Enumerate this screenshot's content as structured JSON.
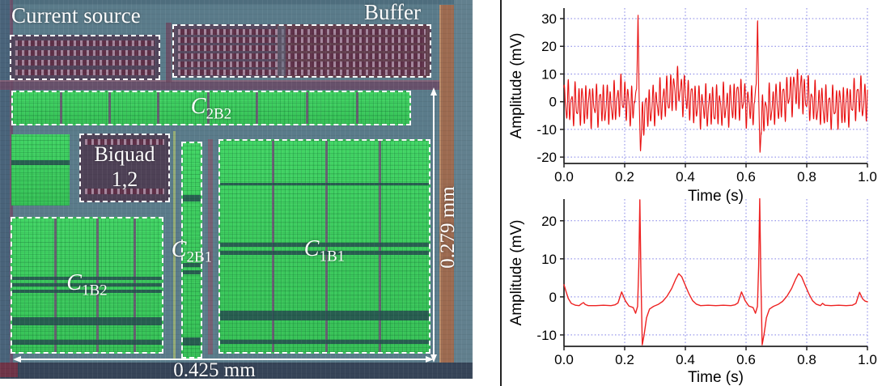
{
  "micrograph": {
    "labels": {
      "current_source": "Current source",
      "buffer": "Buffer",
      "biquad_line1": "Biquad",
      "biquad_line2": "1,2",
      "c2b2": {
        "main": "C",
        "sub": "2B2"
      },
      "c2b1": {
        "main": "C",
        "sub": "2B1"
      },
      "c1b1": {
        "main": "C",
        "sub": "1B1"
      },
      "c1b2": {
        "main": "C",
        "sub": "1B2"
      },
      "width_dim": "0.425 mm",
      "height_dim": "0.279 mm"
    },
    "colors": {
      "background": "#5a7b8a",
      "capacitor_green": "#3ecb5d",
      "resistor_maroon": "#5e3048",
      "annotation": "#ffffff"
    }
  },
  "chart_data": [
    {
      "type": "line",
      "title": "",
      "xlabel": "Time (s)",
      "ylabel": "Amplitude (mV)",
      "xlim": [
        0,
        1
      ],
      "ylim": [
        -22.3,
        33.8
      ],
      "xticks": [
        0.0,
        0.2,
        0.4,
        0.6,
        0.8,
        1.0
      ],
      "xtick_labels": [
        "0.0",
        "0.2",
        "0.4",
        "0.6",
        "0.8",
        "1.0"
      ],
      "yticks": [
        -20,
        -10,
        0,
        10,
        20,
        30
      ],
      "grid": true,
      "grid_color": "#8484e6",
      "line_color": "#e81010",
      "line_width": 1.1,
      "signal": "noisy_ecg",
      "samples": 1700,
      "base_points": [
        [
          0,
          0.5
        ],
        [
          0.02,
          -1
        ],
        [
          0.1,
          -1
        ],
        [
          0.165,
          -1.2
        ],
        [
          0.182,
          1.6
        ],
        [
          0.196,
          2
        ],
        [
          0.21,
          -1
        ],
        [
          0.225,
          -1.8
        ],
        [
          0.234,
          -0.5
        ],
        [
          0.2395,
          6
        ],
        [
          0.244,
          31.5
        ],
        [
          0.2475,
          2
        ],
        [
          0.252,
          -18
        ],
        [
          0.2565,
          -8
        ],
        [
          0.263,
          -4
        ],
        [
          0.275,
          -2.5
        ],
        [
          0.3,
          -1
        ],
        [
          0.33,
          0.8
        ],
        [
          0.355,
          3
        ],
        [
          0.375,
          4.8
        ],
        [
          0.395,
          2.8
        ],
        [
          0.42,
          0.2
        ],
        [
          0.445,
          -1.5
        ],
        [
          0.48,
          -1.8
        ],
        [
          0.52,
          -1.6
        ],
        [
          0.55,
          -1.2
        ],
        [
          0.57,
          0.8
        ],
        [
          0.583,
          1.6
        ],
        [
          0.6,
          -0.8
        ],
        [
          0.619,
          -1.8
        ],
        [
          0.628,
          -0.5
        ],
        [
          0.6335,
          6
        ],
        [
          0.638,
          31.5
        ],
        [
          0.6415,
          2
        ],
        [
          0.646,
          -18
        ],
        [
          0.6505,
          -8
        ],
        [
          0.657,
          -4
        ],
        [
          0.669,
          -2.5
        ],
        [
          0.694,
          -1
        ],
        [
          0.724,
          0.8
        ],
        [
          0.749,
          3
        ],
        [
          0.769,
          4.8
        ],
        [
          0.789,
          2.8
        ],
        [
          0.814,
          0.2
        ],
        [
          0.839,
          -1.5
        ],
        [
          0.874,
          -1.8
        ],
        [
          0.914,
          -1.6
        ],
        [
          0.944,
          -1
        ],
        [
          0.962,
          1.2
        ],
        [
          0.975,
          2
        ],
        [
          0.988,
          0
        ],
        [
          1,
          -0.5
        ]
      ],
      "noise": {
        "amplitude": 9,
        "components": [
          {
            "f": 86,
            "a": 0.62,
            "p": 0.4
          },
          {
            "f": 139,
            "a": 0.25,
            "p": 1.7
          },
          {
            "f": 47,
            "a": 0.13,
            "p": 2.9
          }
        ],
        "suppress_at": [
          0.244,
          0.638
        ],
        "suppress_radius": 0.012,
        "suppress_factor": 0.2
      }
    },
    {
      "type": "line",
      "title": "",
      "xlabel": "Time (s)",
      "ylabel": "Amplitude (mV)",
      "xlim": [
        0,
        1
      ],
      "ylim": [
        -13,
        25.7
      ],
      "xticks": [
        0.0,
        0.2,
        0.4,
        0.6,
        0.8,
        1.0
      ],
      "xtick_labels": [
        "0.0",
        "0.2",
        "0.4",
        "0.6",
        "0.8",
        "1.0"
      ],
      "yticks": [
        -10,
        0,
        10,
        20
      ],
      "grid": true,
      "grid_color": "#8484e6",
      "line_color": "#ee2222",
      "line_width": 1.4,
      "signal": "clean_ecg",
      "points": [
        [
          0,
          3.2
        ],
        [
          0.006,
          1.6
        ],
        [
          0.014,
          -0.4
        ],
        [
          0.024,
          -1.7
        ],
        [
          0.038,
          -2.2
        ],
        [
          0.05,
          -2.3
        ],
        [
          0.058,
          -1.8
        ],
        [
          0.064,
          -1.5
        ],
        [
          0.07,
          -2
        ],
        [
          0.08,
          -2.3
        ],
        [
          0.105,
          -2.3
        ],
        [
          0.13,
          -2.2
        ],
        [
          0.155,
          -2.3
        ],
        [
          0.168,
          -2.1
        ],
        [
          0.178,
          -1.6
        ],
        [
          0.19,
          1.3
        ],
        [
          0.202,
          -1
        ],
        [
          0.214,
          -2.4
        ],
        [
          0.228,
          -2.8
        ],
        [
          0.236,
          -4.3
        ],
        [
          0.2425,
          -2.5
        ],
        [
          0.2465,
          8
        ],
        [
          0.25,
          25.5
        ],
        [
          0.2535,
          6
        ],
        [
          0.258,
          -12.6
        ],
        [
          0.264,
          -10
        ],
        [
          0.272,
          -5.5
        ],
        [
          0.282,
          -3.2
        ],
        [
          0.295,
          -2.5
        ],
        [
          0.31,
          -2
        ],
        [
          0.325,
          -1.2
        ],
        [
          0.34,
          0.2
        ],
        [
          0.355,
          2.2
        ],
        [
          0.368,
          4.6
        ],
        [
          0.378,
          6.1
        ],
        [
          0.388,
          5.3
        ],
        [
          0.4,
          3
        ],
        [
          0.412,
          0.8
        ],
        [
          0.424,
          -1
        ],
        [
          0.436,
          -1.9
        ],
        [
          0.45,
          -2.3
        ],
        [
          0.475,
          -2.2
        ],
        [
          0.5,
          -2.3
        ],
        [
          0.525,
          -2.2
        ],
        [
          0.55,
          -2.3
        ],
        [
          0.563,
          -2.1
        ],
        [
          0.573,
          -1.6
        ],
        [
          0.585,
          1.3
        ],
        [
          0.597,
          -1
        ],
        [
          0.609,
          -2.4
        ],
        [
          0.623,
          -2.8
        ],
        [
          0.631,
          -4.3
        ],
        [
          0.6375,
          -2.5
        ],
        [
          0.6415,
          8
        ],
        [
          0.645,
          25.8
        ],
        [
          0.6485,
          6
        ],
        [
          0.653,
          -12.6
        ],
        [
          0.659,
          -10
        ],
        [
          0.667,
          -5.5
        ],
        [
          0.677,
          -3.2
        ],
        [
          0.69,
          -2.5
        ],
        [
          0.705,
          -2
        ],
        [
          0.72,
          -1.2
        ],
        [
          0.735,
          0.2
        ],
        [
          0.75,
          2.2
        ],
        [
          0.763,
          4.6
        ],
        [
          0.773,
          6.1
        ],
        [
          0.783,
          5.3
        ],
        [
          0.795,
          3
        ],
        [
          0.807,
          0.8
        ],
        [
          0.819,
          -1
        ],
        [
          0.831,
          -1.9
        ],
        [
          0.845,
          -2.3
        ],
        [
          0.852,
          -1.7
        ],
        [
          0.86,
          -2.2
        ],
        [
          0.88,
          -2.3
        ],
        [
          0.905,
          -2.2
        ],
        [
          0.93,
          -2.3
        ],
        [
          0.95,
          -2.2
        ],
        [
          0.962,
          -1.7
        ],
        [
          0.974,
          1.2
        ],
        [
          0.984,
          -0.5
        ],
        [
          0.992,
          -1.1
        ],
        [
          1,
          -1.3
        ]
      ]
    }
  ]
}
